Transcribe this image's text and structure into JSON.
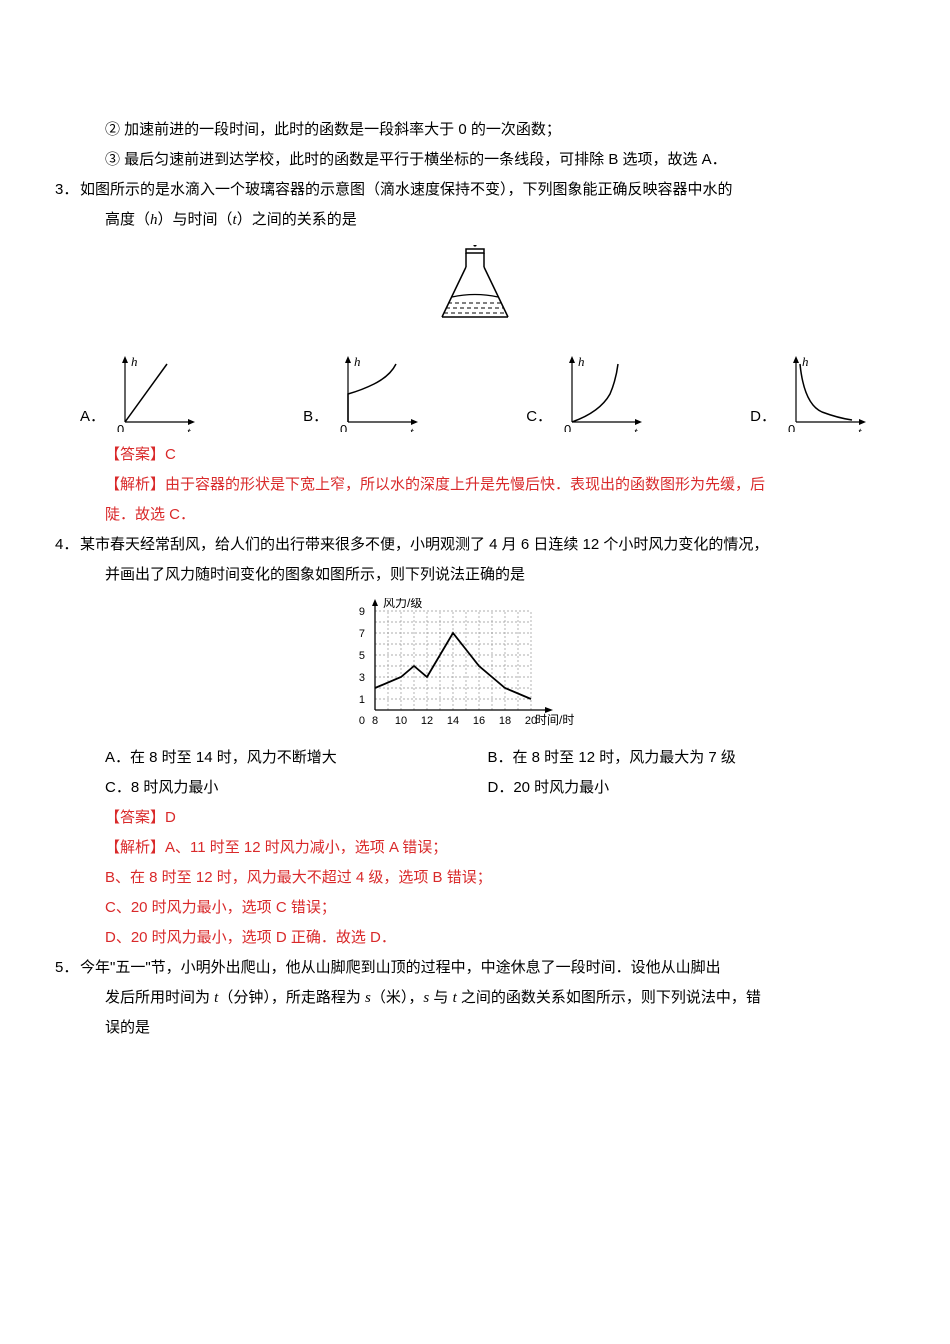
{
  "intro": {
    "line2": "② 加速前进的一段时间，此时的函数是一段斜率大于 0 的一次函数；",
    "line3": "③ 最后匀速前进到达学校，此时的函数是平行于横坐标的一条线段，可排除 B 选项，故选 A．"
  },
  "q3": {
    "num": "3．",
    "text1": "如图所示的是水滴入一个玻璃容器的示意图（滴水速度保持不变），下列图象能正确反映容器中水的",
    "text2_a": "高度（",
    "text2_h": "h",
    "text2_b": "）与时间（",
    "text2_t": "t",
    "text2_c": "）之间的关系的是",
    "container_svg": {
      "width": 100,
      "height": 100,
      "stroke": "#000000",
      "drops": "#000000"
    },
    "optA": "A．",
    "optB": "B．",
    "optC": "C．",
    "optD": "D．",
    "axis_v": "h",
    "axis_h": "t",
    "curves": {
      "A": {
        "type": "linear_up",
        "stroke": "#000"
      },
      "B": {
        "type": "concave_up_late",
        "stroke": "#000"
      },
      "C": {
        "type": "convex_then_steep",
        "stroke": "#000"
      },
      "D": {
        "type": "decay",
        "stroke": "#000"
      }
    },
    "answer_label": "【答案】",
    "answer_val": "C",
    "explain_label": "【解析】",
    "explain_text1": "由于容器的形状是下宽上窄，所以水的深度上升是先慢后快．表现出的函数图形为先缓，后",
    "explain_text2": "陡．故选 C．"
  },
  "q4": {
    "num": "4．",
    "text1": "某市春天经常刮风，给人们的出行带来很多不便，小明观测了 4 月 6 日连续 12 个小时风力变化的情况，",
    "text2": "并画出了风力随时间变化的图象如图所示，则下列说法正确的是",
    "chart": {
      "ylabel": "风力/级",
      "xlabel": "时间/时",
      "yticks": [
        1,
        3,
        5,
        7,
        9
      ],
      "xticks": [
        8,
        10,
        12,
        14,
        16,
        18,
        20
      ],
      "grid_color": "#949494",
      "line_color": "#000000",
      "bg": "#ffffff",
      "points": [
        [
          8,
          2
        ],
        [
          10,
          3
        ],
        [
          11,
          4
        ],
        [
          12,
          3
        ],
        [
          13,
          5
        ],
        [
          14,
          7
        ],
        [
          15,
          5.5
        ],
        [
          16,
          4
        ],
        [
          18,
          2
        ],
        [
          20,
          1
        ]
      ]
    },
    "optA": "A．在 8 时至 14 时，风力不断增大",
    "optB": "B．在 8 时至 12 时，风力最大为 7 级",
    "optC": "C．8 时风力最小",
    "optD": "D．20 时风力最小",
    "answer_label": "【答案】",
    "answer_val": "D",
    "explain_label": "【解析】",
    "e1": "A、11 时至 12 时风力减小，选项 A 错误；",
    "e2": "B、在 8 时至 12 时，风力最大不超过 4 级，选项 B 错误；",
    "e3": "C、20 时风力最小，选项 C 错误；",
    "e4": "D、20 时风力最小，选项 D 正确．故选 D．"
  },
  "q5": {
    "num": "5．",
    "text1": "今年\"五一\"节，小明外出爬山，他从山脚爬到山顶的过程中，中途休息了一段时间．设他从山脚出",
    "text2_a": "发后所用时间为 ",
    "text2_t": "t",
    "text2_b": "（分钟），所走路程为 ",
    "text2_s": "s",
    "text2_c": "（米），",
    "text2_s2": "s",
    "text2_d": " 与 ",
    "text2_t2": "t",
    "text2_e": " 之间的函数关系如图所示，则下列说法中，错",
    "text3": "误的是"
  }
}
